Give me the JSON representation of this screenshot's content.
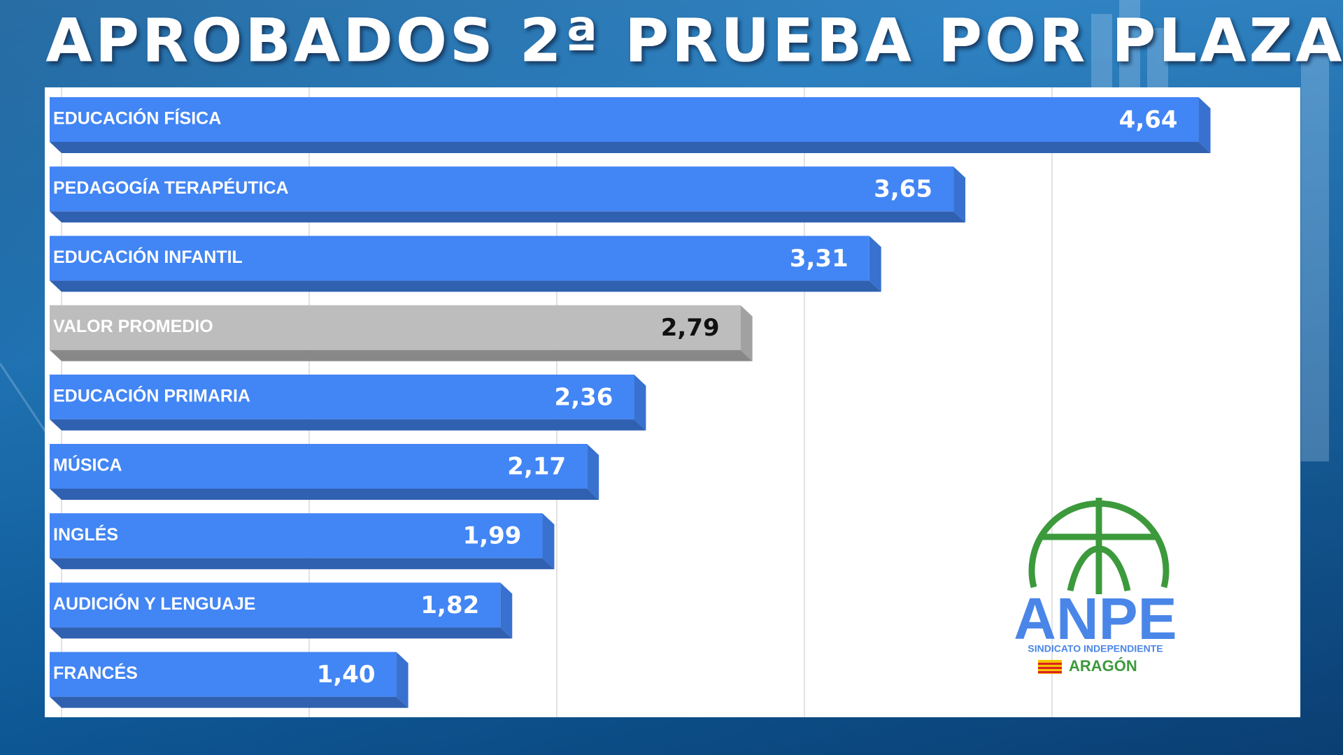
{
  "chart_data": {
    "type": "barh",
    "title": "APROBADOS 2ª PRUEBA POR PLAZA",
    "categories": [
      "EDUCACIÓN FÍSICA",
      "PEDAGOGÍA TERAPÉUTICA",
      "EDUCACIÓN INFANTIL",
      "VALOR PROMEDIO",
      "EDUCACIÓN PRIMARIA",
      "MÚSICA",
      "INGLÉS",
      "AUDICIÓN Y LENGUAJE",
      "FRANCÉS"
    ],
    "values": [
      4.64,
      3.65,
      3.31,
      2.79,
      2.36,
      2.17,
      1.99,
      1.82,
      1.4
    ],
    "value_labels": [
      "4,64",
      "3,65",
      "3,31",
      "2,79",
      "2,36",
      "2,17",
      "1,99",
      "1,82",
      "1,40"
    ],
    "colors": [
      "#4285f4",
      "#4285f4",
      "#4285f4",
      "#bdbdbd",
      "#4285f4",
      "#4285f4",
      "#4285f4",
      "#4285f4",
      "#4285f4"
    ],
    "xlim": [
      0,
      5
    ],
    "xticks": [
      0,
      1,
      2,
      3,
      4
    ],
    "grid": true
  },
  "logo": {
    "name": "ANPE",
    "subtitle": "SINDICATO INDEPENDIENTE",
    "region": "ARAGÓN"
  }
}
